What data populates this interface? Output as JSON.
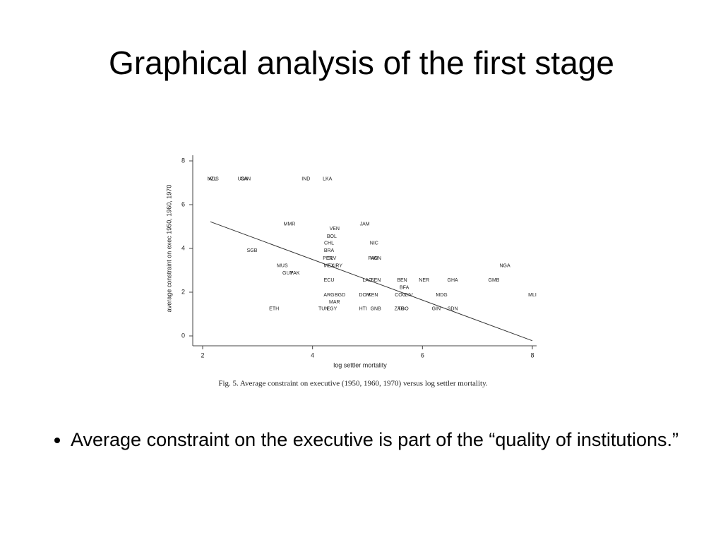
{
  "title": "Graphical analysis of the first stage",
  "chart_data": {
    "type": "scatter",
    "x_label": "log settler mortality",
    "y_label": "average constraint on exec 1950, 1960, 1970",
    "caption": "Fig. 5.  Average constraint on executive (1950, 1960, 1970) versus log settler mortality.",
    "labels": [
      "NZL",
      "AUS",
      "USA",
      "CAN",
      "IND",
      "LKA",
      "MMR",
      "JAM",
      "VEN",
      "BOL",
      "CHL",
      "NIC",
      "BRA",
      "SGB",
      "PER",
      "SLV",
      "PAN",
      "HON",
      "MUS",
      "MEX",
      "URY",
      "NGA",
      "GUY",
      "PAK",
      "ECU",
      "LAO",
      "SEN",
      "BEN",
      "NER",
      "GHA",
      "GMB",
      "BFA",
      "ARG",
      "BGD",
      "DOM",
      "KEN",
      "COG",
      "CIV",
      "MDG",
      "MLI",
      "MAR",
      "ETH",
      "TUN",
      "EGY",
      "HTI",
      "GNB",
      "ZAR",
      "TGO",
      "GIN",
      "SDN"
    ],
    "x": [
      2.17,
      2.2,
      2.73,
      2.78,
      3.88,
      4.27,
      3.58,
      4.95,
      4.4,
      4.35,
      4.3,
      5.12,
      4.3,
      2.9,
      4.28,
      4.35,
      5.1,
      5.15,
      3.45,
      4.3,
      4.45,
      7.5,
      3.55,
      3.68,
      4.3,
      5.0,
      5.15,
      5.63,
      6.03,
      6.55,
      7.3,
      5.67,
      4.3,
      4.5,
      4.95,
      5.1,
      5.6,
      5.75,
      6.35,
      8.0,
      4.4,
      3.3,
      4.2,
      4.35,
      4.92,
      5.15,
      5.58,
      5.65,
      6.25,
      6.55
    ],
    "values": [
      7.17,
      7.17,
      7.17,
      7.17,
      7.17,
      7.17,
      5.1,
      5.1,
      4.9,
      4.55,
      4.23,
      4.23,
      3.9,
      3.9,
      3.55,
      3.55,
      3.55,
      3.55,
      3.2,
      3.2,
      3.2,
      3.2,
      2.87,
      2.87,
      2.55,
      2.55,
      2.55,
      2.55,
      2.55,
      2.55,
      2.55,
      2.2,
      1.87,
      1.87,
      1.87,
      1.87,
      1.87,
      1.87,
      1.87,
      1.87,
      1.55,
      1.23,
      1.23,
      1.23,
      1.23,
      1.23,
      1.23,
      1.23,
      1.23,
      1.23
    ],
    "trend": {
      "x": [
        2.14,
        8
      ],
      "values": [
        5.22,
        -0.22
      ]
    },
    "xlim": [
      2,
      8
    ],
    "ylim": [
      0,
      8
    ],
    "xticks": [
      2,
      4,
      6,
      8
    ],
    "yticks": [
      0,
      2,
      4,
      6,
      8
    ],
    "color": "#333333"
  },
  "bullets": [
    "Average constraint on the executive is part of the “quality of institutions.”"
  ]
}
